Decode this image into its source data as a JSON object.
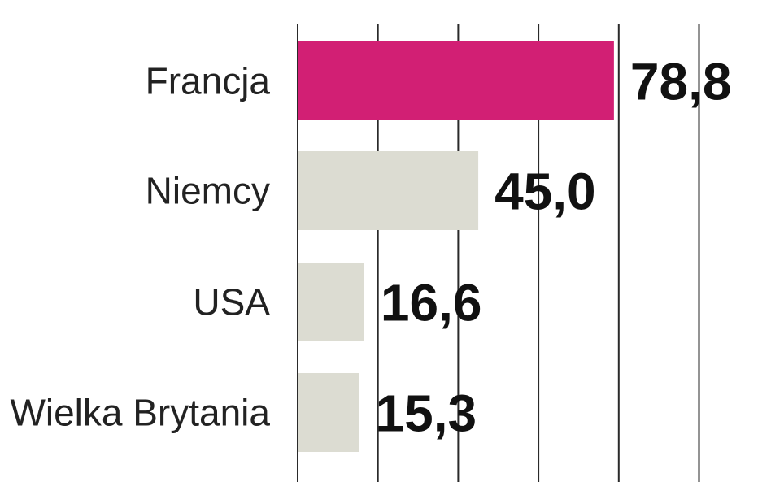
{
  "chart_data": {
    "type": "bar",
    "orientation": "horizontal",
    "categories": [
      "Francja",
      "Niemcy",
      "USA",
      "Wielka Brytania"
    ],
    "values": [
      78.8,
      45.0,
      16.6,
      15.3
    ],
    "value_labels": [
      "78,8",
      "45,0",
      "16,6",
      "15,3"
    ],
    "colors": [
      "#d21f74",
      "#dcdcd2",
      "#dcdcd2",
      "#dcdcd2"
    ],
    "xlim": [
      0,
      100
    ],
    "grid_step": 20,
    "grid": true,
    "title": "",
    "xlabel": "",
    "ylabel": ""
  }
}
